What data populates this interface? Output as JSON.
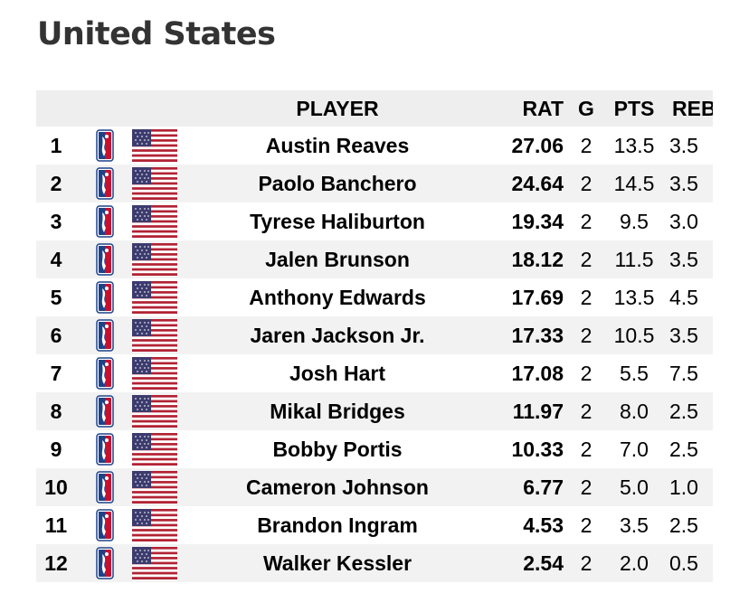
{
  "page": {
    "title": "United States"
  },
  "table": {
    "headers": {
      "rank": "",
      "player": "PLAYER",
      "rat": "RAT",
      "g": "G",
      "pts": "PTS",
      "reb": "REB"
    },
    "rows": [
      {
        "rank": "1",
        "player": "Austin Reaves",
        "rat": "27.06",
        "g": "2",
        "pts": "13.5",
        "reb": "3.5"
      },
      {
        "rank": "2",
        "player": "Paolo Banchero",
        "rat": "24.64",
        "g": "2",
        "pts": "14.5",
        "reb": "3.5"
      },
      {
        "rank": "3",
        "player": "Tyrese Haliburton",
        "rat": "19.34",
        "g": "2",
        "pts": "9.5",
        "reb": "3.0"
      },
      {
        "rank": "4",
        "player": "Jalen Brunson",
        "rat": "18.12",
        "g": "2",
        "pts": "11.5",
        "reb": "3.5"
      },
      {
        "rank": "5",
        "player": "Anthony Edwards",
        "rat": "17.69",
        "g": "2",
        "pts": "13.5",
        "reb": "4.5"
      },
      {
        "rank": "6",
        "player": "Jaren Jackson Jr.",
        "rat": "17.33",
        "g": "2",
        "pts": "10.5",
        "reb": "3.5"
      },
      {
        "rank": "7",
        "player": "Josh Hart",
        "rat": "17.08",
        "g": "2",
        "pts": "5.5",
        "reb": "7.5"
      },
      {
        "rank": "8",
        "player": "Mikal Bridges",
        "rat": "11.97",
        "g": "2",
        "pts": "8.0",
        "reb": "2.5"
      },
      {
        "rank": "9",
        "player": "Bobby Portis",
        "rat": "10.33",
        "g": "2",
        "pts": "7.0",
        "reb": "2.5"
      },
      {
        "rank": "10",
        "player": "Cameron Johnson",
        "rat": "6.77",
        "g": "2",
        "pts": "5.0",
        "reb": "1.0"
      },
      {
        "rank": "11",
        "player": "Brandon Ingram",
        "rat": "4.53",
        "g": "2",
        "pts": "3.5",
        "reb": "2.5"
      },
      {
        "rank": "12",
        "player": "Walker Kessler",
        "rat": "2.54",
        "g": "2",
        "pts": "2.0",
        "reb": "0.5"
      }
    ],
    "league_icon": "nba-logo-icon",
    "country_icon": "us-flag-icon"
  },
  "colors": {
    "header_bg": "#eeeeee",
    "shade_bg": "#f2f2f2",
    "title": "#333333",
    "nba_blue": "#1d428a",
    "nba_red": "#c8102e",
    "flag_red": "#b22234",
    "flag_blue": "#3c3b6e"
  }
}
